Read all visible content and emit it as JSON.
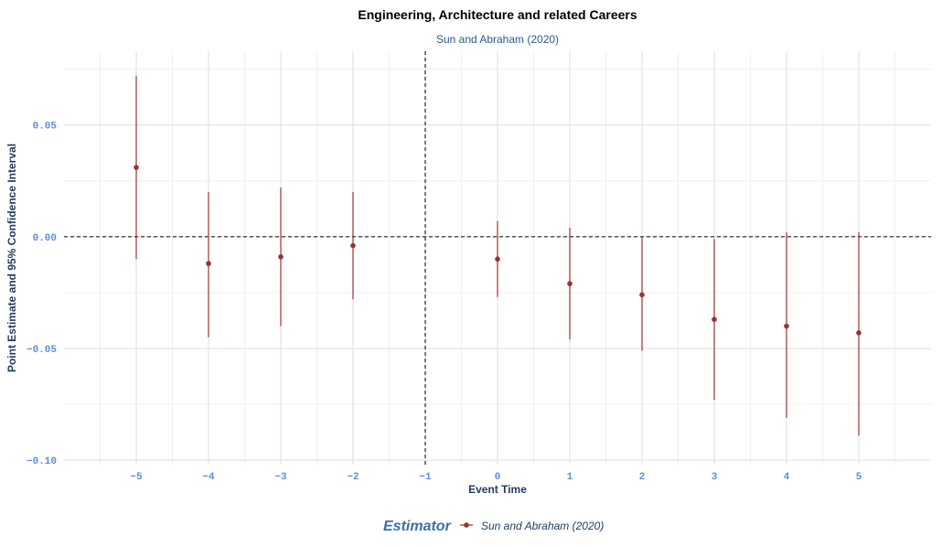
{
  "chart_data": {
    "type": "scatter",
    "title": "Engineering, Architecture and related Careers",
    "subtitle": "Sun and Abraham (2020)",
    "xlabel": "Event Time",
    "ylabel": "Point Estimate and 95% Confidence Interval",
    "xlim": [
      -6.0,
      6.0
    ],
    "ylim": [
      -0.102,
      0.083
    ],
    "x_ticks": [
      -5,
      -4,
      -3,
      -2,
      -1,
      0,
      1,
      2,
      3,
      4,
      5
    ],
    "x_tick_labels": [
      "−5",
      "−4",
      "−3",
      "−2",
      "−1",
      "0",
      "1",
      "2",
      "3",
      "4",
      "5"
    ],
    "y_ticks": [
      0.05,
      0.0,
      -0.05,
      -0.1
    ],
    "y_tick_labels": [
      "0.05",
      "0.00",
      "−0.05",
      "−0.10"
    ],
    "grid": true,
    "reference_lines": {
      "x": -1,
      "y": 0
    },
    "legend": {
      "title": "Estimator",
      "placement": "bottom",
      "entries": [
        "Sun and Abraham (2020)"
      ]
    },
    "series": [
      {
        "name": "Sun and Abraham (2020)",
        "color": "#9b3232",
        "points": [
          {
            "x": -5,
            "y": 0.031,
            "lo": -0.01,
            "hi": 0.072
          },
          {
            "x": -4,
            "y": -0.012,
            "lo": -0.045,
            "hi": 0.02
          },
          {
            "x": -3,
            "y": -0.009,
            "lo": -0.04,
            "hi": 0.022
          },
          {
            "x": -2,
            "y": -0.004,
            "lo": -0.028,
            "hi": 0.02
          },
          {
            "x": 0,
            "y": -0.01,
            "lo": -0.027,
            "hi": 0.007
          },
          {
            "x": 1,
            "y": -0.021,
            "lo": -0.046,
            "hi": 0.004
          },
          {
            "x": 2,
            "y": -0.026,
            "lo": -0.051,
            "hi": 0.0
          },
          {
            "x": 3,
            "y": -0.037,
            "lo": -0.073,
            "hi": -0.001
          },
          {
            "x": 4,
            "y": -0.04,
            "lo": -0.081,
            "hi": 0.002
          },
          {
            "x": 5,
            "y": -0.043,
            "lo": -0.089,
            "hi": 0.002
          }
        ]
      }
    ]
  }
}
